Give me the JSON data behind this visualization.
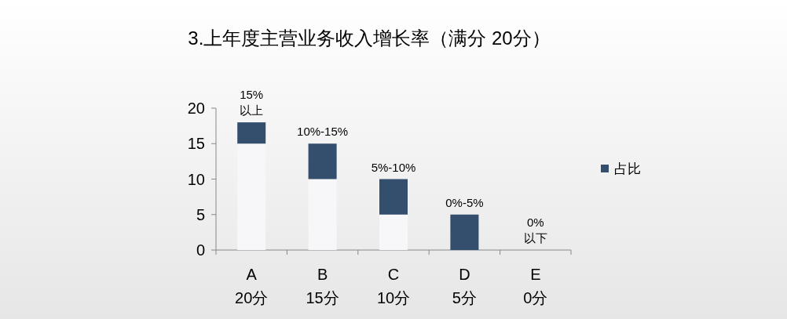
{
  "chart_data": {
    "type": "bar",
    "title": "3.上年度主营业务收入增长率（满分 20分）",
    "stacked": true,
    "categories": [
      "A\n20分",
      "B\n15分",
      "C\n10分",
      "D\n5分",
      "E\n0分"
    ],
    "series": [
      {
        "color": "#f7f7f9",
        "values": [
          15,
          10,
          5,
          0,
          0
        ]
      },
      {
        "name": "占比",
        "color": "#344e6e",
        "values": [
          3,
          5,
          5,
          5,
          0
        ]
      }
    ],
    "ylim": [
      0,
      20
    ],
    "yticks": [
      0,
      5,
      10,
      15,
      20
    ],
    "legend": "right",
    "annotations": [
      "15%\n以上",
      "10%-15%",
      "5%-10%",
      "0%-5%",
      "0%\n以下"
    ]
  }
}
